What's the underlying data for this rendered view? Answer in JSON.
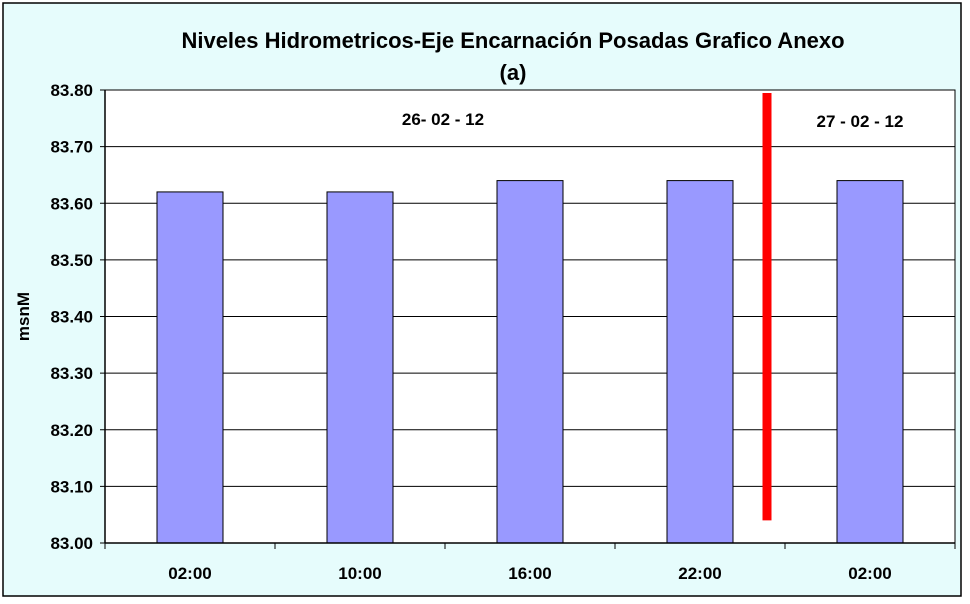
{
  "colors": {
    "background": "#e6fcfc",
    "plot_area": "#ffffff",
    "bar_fill": "#9999ff",
    "bar_stroke": "#000000",
    "marker_line": "#ff0000",
    "grid": "#000000"
  },
  "chart_data": {
    "type": "bar",
    "title": "Niveles Hidrometricos-Eje Encarnación Posadas Grafico Anexo",
    "subtitle": "(a)",
    "xlabel": "",
    "ylabel": "msnM",
    "categories": [
      "02:00",
      "10:00",
      "16:00",
      "22:00",
      "02:00"
    ],
    "series": [
      {
        "values": [
          83.62,
          83.62,
          83.64,
          83.64,
          83.64
        ]
      }
    ],
    "ylim": [
      83.0,
      83.8
    ],
    "ytick_values": [
      83.0,
      83.1,
      83.2,
      83.3,
      83.4,
      83.5,
      83.6,
      83.7,
      83.8
    ],
    "ytick_labels": [
      "83.00",
      "83.10",
      "83.20",
      "83.30",
      "83.40",
      "83.50",
      "83.60",
      "83.70",
      "83.80"
    ],
    "grid": true,
    "annotations": [
      {
        "text": "26- 02 - 12"
      },
      {
        "text": "27 - 02 - 12"
      }
    ],
    "date_divider": {
      "after_category_index": 3,
      "y_from": 83.04,
      "y_to": 83.8
    }
  }
}
